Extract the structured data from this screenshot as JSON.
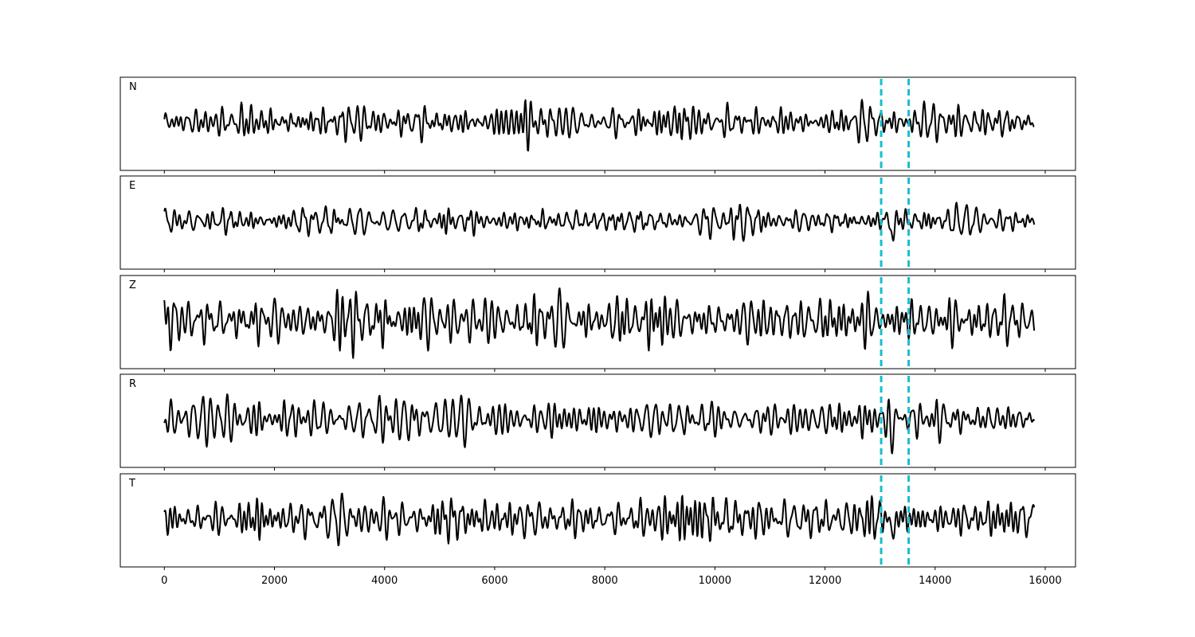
{
  "chart_data": {
    "type": "line",
    "title": "",
    "xlabel": "",
    "ylabel": "",
    "xlim": [
      -800,
      16550
    ],
    "x_ticks": [
      0,
      2000,
      4000,
      6000,
      8000,
      10000,
      12000,
      14000,
      16000
    ],
    "x_tick_labels": [
      "0",
      "2000",
      "4000",
      "6000",
      "8000",
      "10000",
      "12000",
      "14000",
      "16000"
    ],
    "n_samples": 15800,
    "trace_color": "#000000",
    "marker_color": "#17becf",
    "vertical_markers": [
      13020,
      13520
    ],
    "panels": [
      {
        "label": "N",
        "seed": 11,
        "amp": 0.34
      },
      {
        "label": "E",
        "seed": 23,
        "amp": 0.24,
        "event": {
          "center": 13230,
          "amp": 0.75
        }
      },
      {
        "label": "Z",
        "seed": 37,
        "amp": 0.45
      },
      {
        "label": "R",
        "seed": 51,
        "amp": 0.34,
        "event": {
          "center": 13200,
          "amp": 0.6
        }
      },
      {
        "label": "T",
        "seed": 67,
        "amp": 0.32,
        "event": {
          "center": 13230,
          "amp": 0.65
        }
      }
    ]
  }
}
